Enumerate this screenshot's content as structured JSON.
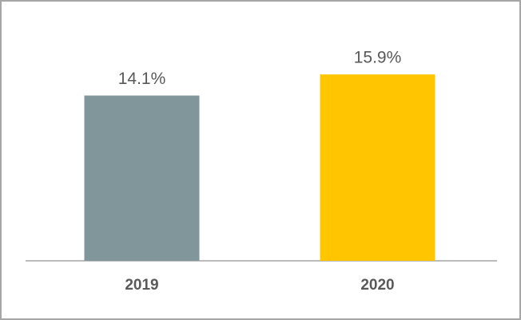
{
  "chart_data": {
    "type": "bar",
    "categories": [
      "2019",
      "2020"
    ],
    "values": [
      14.1,
      15.9
    ],
    "value_labels": [
      "14.1%",
      "15.9%"
    ],
    "colors": [
      "#80969b",
      "#ffc600"
    ]
  }
}
